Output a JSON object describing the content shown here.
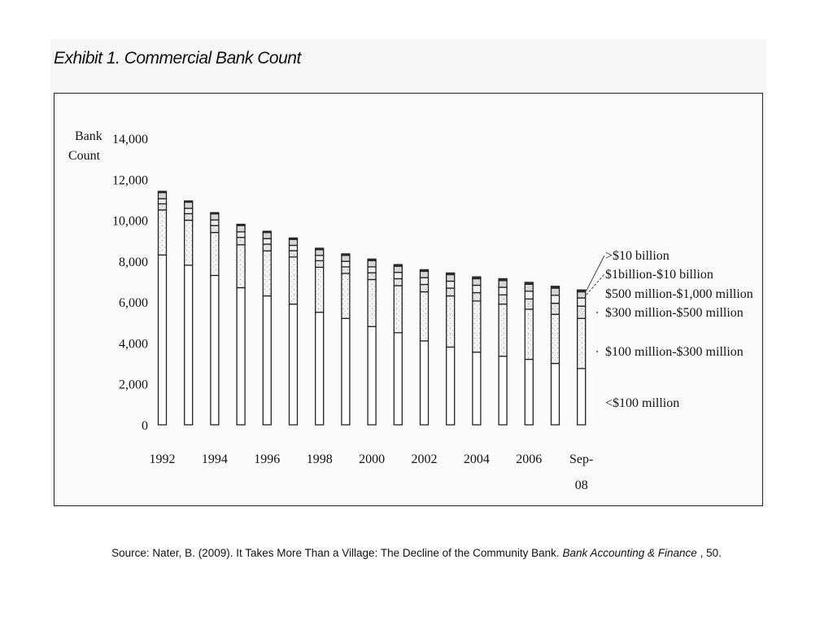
{
  "exhibit_title": "Exhibit 1. Commercial Bank Count",
  "caption": {
    "prefix": "Source: Nater, B. (2009). It Takes More Than a Village: The Decline of the Community Bank.",
    "journal": "Bank Accounting & Finance",
    "suffix": ", 50."
  },
  "chart_data": {
    "type": "bar",
    "stacked": true,
    "title": "Exhibit 1. Commercial Bank Count",
    "ylabel": [
      "Bank",
      "Count"
    ],
    "xlabel": "",
    "ylim": [
      0,
      14000
    ],
    "yticks": [
      "0",
      "2,000",
      "4,000",
      "6,000",
      "8,000",
      "10,000",
      "12,000",
      "14,000"
    ],
    "ytick_values": [
      0,
      2000,
      4000,
      6000,
      8000,
      10000,
      12000,
      14000
    ],
    "x_tick_labels": [
      {
        "index": 0,
        "lines": [
          "1992"
        ]
      },
      {
        "index": 2,
        "lines": [
          "1994"
        ]
      },
      {
        "index": 4,
        "lines": [
          "1996"
        ]
      },
      {
        "index": 6,
        "lines": [
          "1998"
        ]
      },
      {
        "index": 8,
        "lines": [
          "2000"
        ]
      },
      {
        "index": 10,
        "lines": [
          "2002"
        ]
      },
      {
        "index": 12,
        "lines": [
          "2004"
        ]
      },
      {
        "index": 14,
        "lines": [
          "2006"
        ]
      },
      {
        "index": 16,
        "lines": [
          "Sep-",
          "08"
        ]
      }
    ],
    "categories": [
      "1992",
      "1993",
      "1994",
      "1995",
      "1996",
      "1997",
      "1998",
      "1999",
      "2000",
      "2001",
      "2002",
      "2003",
      "2004",
      "2005",
      "2006",
      "2007",
      "Sep-08"
    ],
    "series": [
      {
        "name": "<$100 million",
        "fill": "#ffffff",
        "values": [
          8300,
          7800,
          7300,
          6700,
          6300,
          5900,
          5500,
          5200,
          4800,
          4500,
          4100,
          3800,
          3550,
          3350,
          3200,
          3000,
          2750
        ]
      },
      {
        "name": "$100 million-$300 million",
        "fill": "#f4f4f4",
        "values": [
          2200,
          2200,
          2100,
          2100,
          2200,
          2300,
          2200,
          2200,
          2300,
          2300,
          2400,
          2500,
          2500,
          2550,
          2450,
          2400,
          2450
        ]
      },
      {
        "name": "$300 million-$500 million",
        "fill": "#e6e6e6",
        "values": [
          300,
          320,
          340,
          360,
          330,
          310,
          320,
          320,
          330,
          340,
          360,
          380,
          410,
          450,
          500,
          540,
          600
        ]
      },
      {
        "name": "$500 million-$1,000 million",
        "fill": "#f0f0f0",
        "values": [
          250,
          260,
          270,
          270,
          270,
          260,
          260,
          270,
          290,
          310,
          330,
          340,
          360,
          370,
          380,
          390,
          400
        ]
      },
      {
        "name": "$1billion-$10 billion",
        "fill": "#d6d6d6",
        "values": [
          300,
          300,
          300,
          310,
          300,
          290,
          280,
          290,
          300,
          300,
          310,
          320,
          320,
          330,
          340,
          350,
          300
        ]
      },
      {
        "name": ">$10 billion",
        "fill": "#3a3a3a",
        "values": [
          60,
          60,
          60,
          60,
          60,
          70,
          70,
          75,
          80,
          80,
          80,
          80,
          90,
          90,
          90,
          90,
          90
        ]
      }
    ],
    "legend": [
      ">$10 billion",
      "$1billion-$10 billion",
      "$500 million-$1,000 million",
      "$300 million-$500 million",
      "$100 million-$300 million",
      "<$100 million"
    ],
    "legend_placement": "right",
    "grid": false
  }
}
